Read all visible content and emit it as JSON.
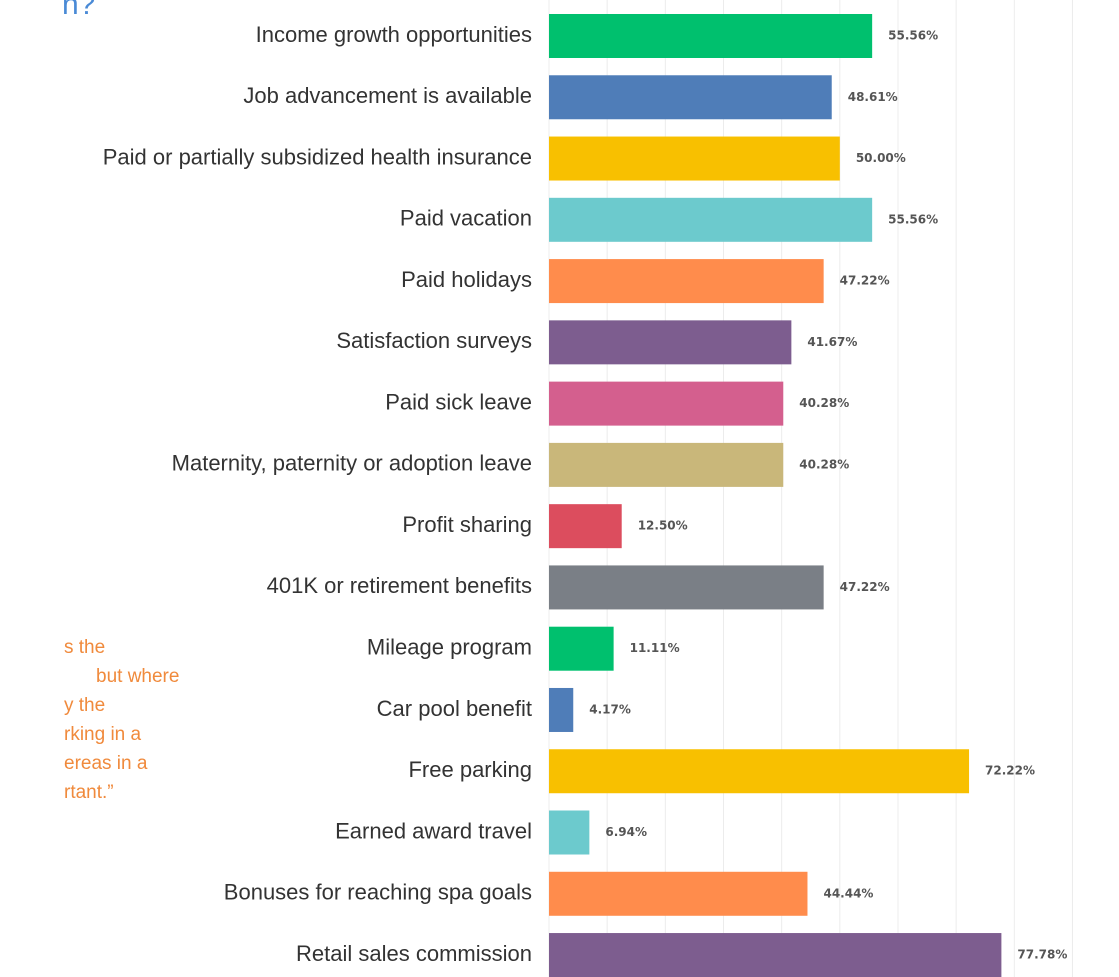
{
  "chart_data": {
    "type": "hbar",
    "title": "n?",
    "annotations": [
      "s the",
      "but where",
      "y the",
      "rking in a",
      "ereas in a",
      "rtant.”"
    ],
    "categories": [
      "Income growth opportunities",
      "Job advancement is available",
      "Paid or partially subsidized health insurance",
      "Paid vacation",
      "Paid holidays",
      "Satisfaction surveys",
      "Paid sick leave",
      "Maternity, paternity or adoption leave",
      "Profit sharing",
      "401K or retirement benefits",
      "Mileage program",
      "Car pool benefit",
      "Free parking",
      "Earned award travel",
      "Bonuses for reaching spa goals",
      "Retail sales commission"
    ],
    "values": [
      55.56,
      48.61,
      50.0,
      55.56,
      47.22,
      41.67,
      40.28,
      40.28,
      12.5,
      47.22,
      11.11,
      4.17,
      72.22,
      6.94,
      44.44,
      77.78
    ],
    "value_labels": [
      "55.56%",
      "48.61%",
      "50.00%",
      "55.56%",
      "47.22%",
      "41.67%",
      "40.28%",
      "40.28%",
      "12.50%",
      "47.22%",
      "11.11%",
      "4.17%",
      "72.22%",
      "6.94%",
      "44.44%",
      "77.78%"
    ],
    "colors": [
      "#00c06e",
      "#4f7db8",
      "#f8c000",
      "#6ccacd",
      "#ff8c4c",
      "#7d5d8f",
      "#d45f8e",
      "#c9b77a",
      "#dc4d5e",
      "#7a7f86",
      "#00c06e",
      "#4f7db8",
      "#f8c000",
      "#6ccacd",
      "#ff8c4c",
      "#7d5d8f"
    ],
    "xlim": [
      0,
      98
    ],
    "xticks": [
      0,
      10,
      20,
      30,
      40,
      50,
      60,
      70,
      80,
      90
    ],
    "grid": true
  }
}
